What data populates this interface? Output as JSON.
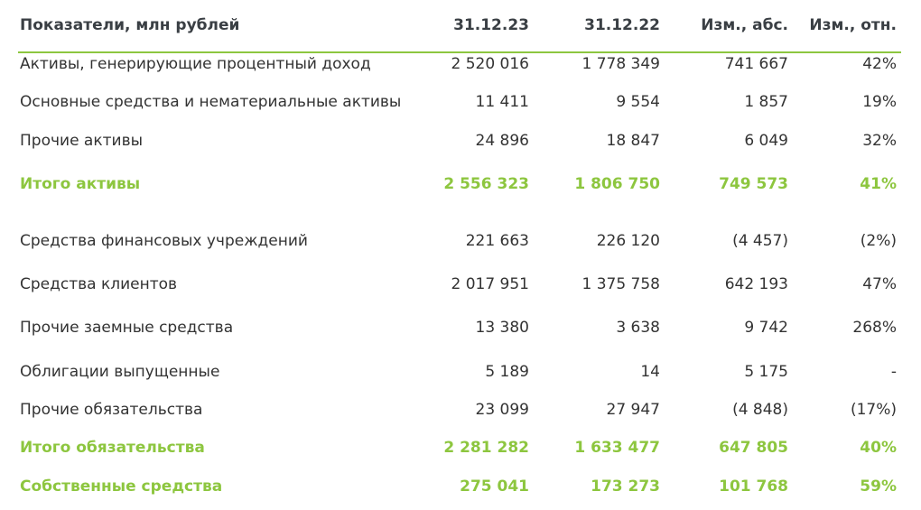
{
  "header": {
    "label": "Показатели, млн рублей",
    "col1": "31.12.23",
    "col2": "31.12.22",
    "col3": "Изм., абс.",
    "col4": "Изм., отн."
  },
  "rows": [
    {
      "label": "Активы, генерирующие процентный доход",
      "v1": "2 520 016",
      "v2": "1 778 349",
      "v3": "741 667",
      "v4": "42%"
    },
    {
      "label": "Основные средства и нематериальные активы",
      "v1": "11 411",
      "v2": "9 554",
      "v3": "1 857",
      "v4": "19%"
    },
    {
      "label": "Прочие активы",
      "v1": "24 896",
      "v2": "18 847",
      "v3": "6 049",
      "v4": "32%"
    },
    {
      "label": "Итого активы",
      "v1": "2 556 323",
      "v2": "1 806 750",
      "v3": "749 573",
      "v4": "41%"
    },
    {
      "label": "Средства финансовых учреждений",
      "v1": "221 663",
      "v2": "226 120",
      "v3": "(4 457)",
      "v4": "(2%)"
    },
    {
      "label": "Средства клиентов",
      "v1": "2 017 951",
      "v2": "1 375 758",
      "v3": "642 193",
      "v4": "47%"
    },
    {
      "label": "Прочие заемные средства",
      "v1": "13 380",
      "v2": "3 638",
      "v3": "9 742",
      "v4": "268%"
    },
    {
      "label": "Облигации выпущенные",
      "v1": "5 189",
      "v2": "14",
      "v3": "5 175",
      "v4": "-"
    },
    {
      "label": "Прочие обязательства",
      "v1": "23 099",
      "v2": "27 947",
      "v3": "(4 848)",
      "v4": "(17%)"
    },
    {
      "label": "Итого обязательства",
      "v1": "2 281 282",
      "v2": "1 633 477",
      "v3": "647 805",
      "v4": "40%"
    },
    {
      "label": "Собственные средства",
      "v1": "275 041",
      "v2": "173 273",
      "v3": "101 768",
      "v4": "59%"
    }
  ],
  "colors": {
    "accent": "#8dc63f",
    "text": "#333333"
  }
}
